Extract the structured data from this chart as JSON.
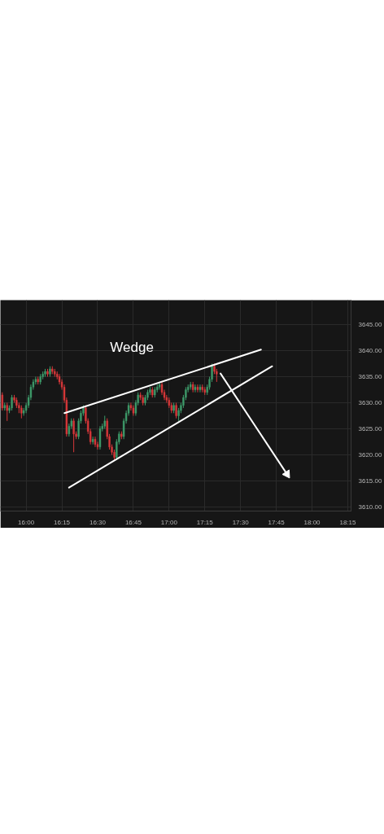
{
  "chart_data": {
    "type": "candlestick",
    "x": [
      15.833,
      15.85,
      15.867,
      15.883,
      15.9,
      15.917,
      15.933,
      15.95,
      15.967,
      15.983,
      16.0,
      16.017,
      16.033,
      16.05,
      16.067,
      16.083,
      16.1,
      16.117,
      16.133,
      16.15,
      16.167,
      16.183,
      16.2,
      16.217,
      16.233,
      16.25,
      16.267,
      16.283,
      16.3,
      16.317,
      16.333,
      16.35,
      16.367,
      16.383,
      16.4,
      16.417,
      16.433,
      16.45,
      16.467,
      16.483,
      16.5,
      16.517,
      16.533,
      16.55,
      16.567,
      16.583,
      16.6,
      16.617,
      16.633,
      16.65,
      16.667,
      16.683,
      16.7,
      16.717,
      16.733,
      16.75,
      16.767,
      16.783,
      16.8,
      16.817,
      16.833,
      16.85,
      16.867,
      16.883,
      16.9,
      16.917,
      16.933,
      16.95,
      16.967,
      16.983,
      17.0,
      17.017,
      17.033,
      17.05,
      17.067,
      17.083,
      17.1,
      17.117,
      17.133,
      17.15,
      17.167,
      17.183,
      17.2,
      17.217,
      17.233,
      17.25,
      17.267,
      17.283,
      17.3,
      17.317,
      17.333
    ],
    "ohlc": [
      [
        3631.5,
        3632.0,
        3628.5,
        3629.0
      ],
      [
        3629.0,
        3630.0,
        3628.5,
        3629.5
      ],
      [
        3629.5,
        3630.0,
        3626.5,
        3628.5
      ],
      [
        3628.5,
        3629.5,
        3628.0,
        3629.0
      ],
      [
        3629.0,
        3631.5,
        3628.5,
        3631.0
      ],
      [
        3631.0,
        3631.5,
        3630.0,
        3630.5
      ],
      [
        3630.5,
        3631.0,
        3629.0,
        3629.5
      ],
      [
        3629.5,
        3630.0,
        3628.0,
        3629.0
      ],
      [
        3629.0,
        3629.5,
        3627.0,
        3628.0
      ],
      [
        3628.0,
        3629.0,
        3627.5,
        3628.5
      ],
      [
        3628.5,
        3630.0,
        3628.0,
        3629.5
      ],
      [
        3629.5,
        3631.5,
        3629.0,
        3631.0
      ],
      [
        3631.0,
        3633.5,
        3630.5,
        3633.0
      ],
      [
        3633.0,
        3634.5,
        3632.5,
        3634.0
      ],
      [
        3634.0,
        3635.0,
        3633.5,
        3634.5
      ],
      [
        3634.5,
        3635.0,
        3633.5,
        3634.0
      ],
      [
        3634.0,
        3635.5,
        3633.5,
        3635.0
      ],
      [
        3635.0,
        3636.0,
        3634.5,
        3635.5
      ],
      [
        3635.5,
        3636.5,
        3635.0,
        3636.0
      ],
      [
        3636.0,
        3636.5,
        3635.0,
        3635.5
      ],
      [
        3635.5,
        3637.0,
        3635.0,
        3636.5
      ],
      [
        3636.5,
        3637.0,
        3635.5,
        3636.0
      ],
      [
        3636.0,
        3636.5,
        3635.0,
        3635.5
      ],
      [
        3635.5,
        3636.0,
        3634.5,
        3635.0
      ],
      [
        3635.0,
        3635.5,
        3633.5,
        3634.0
      ],
      [
        3634.0,
        3634.5,
        3632.5,
        3633.0
      ],
      [
        3633.0,
        3633.5,
        3630.0,
        3630.5
      ],
      [
        3630.5,
        3631.0,
        3623.5,
        3624.0
      ],
      [
        3624.0,
        3626.0,
        3623.5,
        3625.5
      ],
      [
        3625.5,
        3627.0,
        3625.0,
        3626.5
      ],
      [
        3626.5,
        3627.0,
        3620.5,
        3624.0
      ],
      [
        3624.0,
        3624.5,
        3623.0,
        3623.5
      ],
      [
        3623.5,
        3627.0,
        3623.0,
        3626.5
      ],
      [
        3626.5,
        3628.5,
        3626.0,
        3628.0
      ],
      [
        3628.0,
        3629.5,
        3627.5,
        3629.0
      ],
      [
        3629.0,
        3629.5,
        3626.0,
        3626.5
      ],
      [
        3626.5,
        3627.0,
        3624.0,
        3624.5
      ],
      [
        3624.5,
        3625.0,
        3622.0,
        3622.5
      ],
      [
        3622.5,
        3623.5,
        3622.0,
        3623.0
      ],
      [
        3623.0,
        3623.5,
        3621.5,
        3622.0
      ],
      [
        3622.0,
        3622.5,
        3621.0,
        3621.5
      ],
      [
        3621.5,
        3625.5,
        3621.0,
        3625.0
      ],
      [
        3625.0,
        3626.0,
        3624.5,
        3625.5
      ],
      [
        3625.5,
        3627.5,
        3625.0,
        3626.5
      ],
      [
        3626.5,
        3627.0,
        3623.0,
        3623.5
      ],
      [
        3623.5,
        3624.0,
        3621.0,
        3621.5
      ],
      [
        3621.5,
        3622.0,
        3620.0,
        3620.5
      ],
      [
        3620.5,
        3621.0,
        3619.0,
        3619.5
      ],
      [
        3619.5,
        3623.0,
        3619.0,
        3622.5
      ],
      [
        3622.5,
        3624.5,
        3622.0,
        3624.0
      ],
      [
        3624.0,
        3624.5,
        3623.0,
        3623.5
      ],
      [
        3623.5,
        3627.0,
        3623.0,
        3626.5
      ],
      [
        3626.5,
        3628.5,
        3626.0,
        3628.0
      ],
      [
        3628.0,
        3630.0,
        3627.5,
        3629.5
      ],
      [
        3629.5,
        3630.0,
        3628.5,
        3629.0
      ],
      [
        3629.0,
        3629.5,
        3627.5,
        3628.0
      ],
      [
        3628.0,
        3630.5,
        3627.5,
        3630.0
      ],
      [
        3630.0,
        3632.0,
        3629.5,
        3631.5
      ],
      [
        3631.5,
        3632.0,
        3630.5,
        3631.0
      ],
      [
        3631.0,
        3631.5,
        3629.5,
        3630.0
      ],
      [
        3630.0,
        3631.5,
        3629.5,
        3631.0
      ],
      [
        3631.0,
        3632.5,
        3630.5,
        3632.0
      ],
      [
        3632.0,
        3633.0,
        3631.5,
        3632.5
      ],
      [
        3632.5,
        3633.0,
        3631.0,
        3631.5
      ],
      [
        3631.5,
        3633.0,
        3631.0,
        3632.5
      ],
      [
        3632.5,
        3633.5,
        3632.0,
        3633.0
      ],
      [
        3633.0,
        3634.0,
        3632.5,
        3633.5
      ],
      [
        3633.5,
        3634.0,
        3631.5,
        3632.0
      ],
      [
        3632.0,
        3632.5,
        3630.5,
        3631.0
      ],
      [
        3631.0,
        3631.5,
        3630.0,
        3630.5
      ],
      [
        3630.5,
        3631.0,
        3629.0,
        3629.5
      ],
      [
        3629.5,
        3630.0,
        3628.0,
        3628.5
      ],
      [
        3628.5,
        3630.0,
        3628.0,
        3629.5
      ],
      [
        3629.5,
        3630.0,
        3627.0,
        3627.5
      ],
      [
        3627.5,
        3629.0,
        3626.5,
        3628.5
      ],
      [
        3628.5,
        3630.0,
        3628.0,
        3629.5
      ],
      [
        3629.5,
        3631.5,
        3629.0,
        3631.0
      ],
      [
        3631.0,
        3633.0,
        3630.5,
        3632.5
      ],
      [
        3632.5,
        3633.5,
        3632.0,
        3633.0
      ],
      [
        3633.0,
        3634.0,
        3632.5,
        3633.5
      ],
      [
        3633.5,
        3634.0,
        3632.0,
        3632.5
      ],
      [
        3632.5,
        3633.5,
        3632.0,
        3633.0
      ],
      [
        3633.0,
        3633.5,
        3632.0,
        3632.5
      ],
      [
        3632.5,
        3633.5,
        3632.0,
        3633.0
      ],
      [
        3633.0,
        3633.5,
        3632.0,
        3632.5
      ],
      [
        3632.5,
        3633.0,
        3631.5,
        3632.0
      ],
      [
        3632.0,
        3633.5,
        3631.5,
        3633.0
      ],
      [
        3633.0,
        3635.0,
        3632.5,
        3634.5
      ],
      [
        3634.5,
        3637.5,
        3634.0,
        3637.0
      ],
      [
        3637.0,
        3637.5,
        3635.5,
        3636.0
      ],
      [
        3636.0,
        3636.5,
        3634.0,
        3635.5
      ]
    ],
    "colors": [
      "#d9383a",
      "#3e9b6a",
      "#d9383a",
      "#3e9b6a",
      "#3e9b6a",
      "#d9383a",
      "#d9383a",
      "#d9383a",
      "#d9383a",
      "#3e9b6a",
      "#3e9b6a",
      "#3e9b6a",
      "#3e9b6a",
      "#3e9b6a",
      "#3e9b6a",
      "#d9383a",
      "#3e9b6a",
      "#3e9b6a",
      "#3e9b6a",
      "#d9383a",
      "#3e9b6a",
      "#d9383a",
      "#d9383a",
      "#d9383a",
      "#d9383a",
      "#d9383a",
      "#d9383a",
      "#d9383a",
      "#3e9b6a",
      "#3e9b6a",
      "#d9383a",
      "#d9383a",
      "#3e9b6a",
      "#3e9b6a",
      "#3e9b6a",
      "#d9383a",
      "#d9383a",
      "#d9383a",
      "#3e9b6a",
      "#d9383a",
      "#d9383a",
      "#3e9b6a",
      "#3e9b6a",
      "#3e9b6a",
      "#d9383a",
      "#d9383a",
      "#d9383a",
      "#d9383a",
      "#3e9b6a",
      "#3e9b6a",
      "#d9383a",
      "#3e9b6a",
      "#3e9b6a",
      "#3e9b6a",
      "#d9383a",
      "#d9383a",
      "#3e9b6a",
      "#3e9b6a",
      "#d9383a",
      "#d9383a",
      "#3e9b6a",
      "#3e9b6a",
      "#3e9b6a",
      "#d9383a",
      "#3e9b6a",
      "#3e9b6a",
      "#3e9b6a",
      "#d9383a",
      "#d9383a",
      "#d9383a",
      "#d9383a",
      "#d9383a",
      "#3e9b6a",
      "#d9383a",
      "#3e9b6a",
      "#3e9b6a",
      "#3e9b6a",
      "#3e9b6a",
      "#3e9b6a",
      "#3e9b6a",
      "#d9383a",
      "#3e9b6a",
      "#d9383a",
      "#3e9b6a",
      "#d9383a",
      "#d9383a",
      "#3e9b6a",
      "#3e9b6a",
      "#3e9b6a",
      "#d9383a",
      "#d9383a"
    ],
    "series": [
      {
        "type": "line",
        "color": "#ffffff",
        "x": [
          16.268,
          17.643
        ],
        "values": [
          3628.0,
          3640.2
        ]
      },
      {
        "type": "line",
        "color": "#ffffff",
        "x": [
          16.3,
          17.721
        ],
        "values": [
          3613.7,
          3637.0
        ]
      },
      {
        "type": "line",
        "color": "#ffffff",
        "x": [
          17.36,
          17.825
        ],
        "values": [
          3635.6,
          3616.3
        ],
        "marker": "triangle"
      }
    ],
    "annotations": [
      "Wedge"
    ],
    "xlim": [
      15.82,
      18.273
    ],
    "ylim": [
      3609.2,
      3649.7
    ],
    "xticks": [
      {
        "value": 16.0,
        "label": "16:00"
      },
      {
        "value": 16.25,
        "label": "16:15"
      },
      {
        "value": 16.5,
        "label": "16:30"
      },
      {
        "value": 16.75,
        "label": "16:45"
      },
      {
        "value": 17.0,
        "label": "17:00"
      },
      {
        "value": 17.25,
        "label": "17:15"
      },
      {
        "value": 17.5,
        "label": "17:30"
      },
      {
        "value": 17.75,
        "label": "17:45"
      },
      {
        "value": 18.0,
        "label": "18:00"
      },
      {
        "value": 18.25,
        "label": "18:15"
      }
    ],
    "yticks": [
      {
        "value": 3610,
        "label": "3610.00"
      },
      {
        "value": 3615,
        "label": "3615.00"
      },
      {
        "value": 3620,
        "label": "3620.00"
      },
      {
        "value": 3625,
        "label": "3625.00"
      },
      {
        "value": 3630,
        "label": "3630.00"
      },
      {
        "value": 3635,
        "label": "3635.00"
      },
      {
        "value": 3640,
        "label": "3640.00"
      },
      {
        "value": 3645,
        "label": "3645.00"
      }
    ],
    "grid": true
  }
}
